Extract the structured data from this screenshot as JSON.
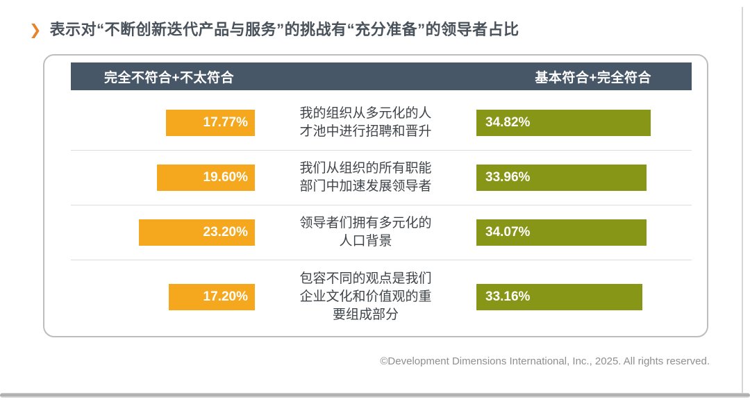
{
  "page": {
    "title": "表示对“不断创新迭代产品与服务”的挑战有“充分准备”的领导者占比",
    "footer": "©Development Dimensions International, Inc., 2025. All rights reserved."
  },
  "table": {
    "header_left": "完全不符合+不太符合",
    "header_right": "基本符合+完全符合"
  },
  "colors": {
    "accent_chevron": "#E8832A",
    "header_bg": "#475768",
    "negative_bar": "#F5A71D",
    "positive_bar": "#889618",
    "title_text": "#49525B",
    "divider": "#DCDCDC"
  },
  "chart_data": {
    "type": "bar",
    "orientation": "horizontal",
    "title": "表示对“不断创新迭代产品与服务”的挑战有“充分准备”的领导者占比",
    "value_format": "percent",
    "xlim": [
      0,
      40
    ],
    "grid": false,
    "legend_position": "header-row",
    "categories": [
      "我的组织从多元化的人才池中进行招聘和晋升",
      "我们从组织的所有职能部门中加速发展领导者",
      "领导者们拥有多元化的人口背景",
      "包容不同的观点是我们企业文化和价值观的重要组成部分"
    ],
    "series": [
      {
        "name": "完全不符合+不太符合",
        "values": [
          17.77,
          19.6,
          23.2,
          17.2
        ],
        "color": "#F5A71D",
        "bar_anchor": "right"
      },
      {
        "name": "基本符合+完全符合",
        "values": [
          34.82,
          33.96,
          34.07,
          33.16
        ],
        "color": "#889618",
        "bar_anchor": "left"
      }
    ]
  }
}
